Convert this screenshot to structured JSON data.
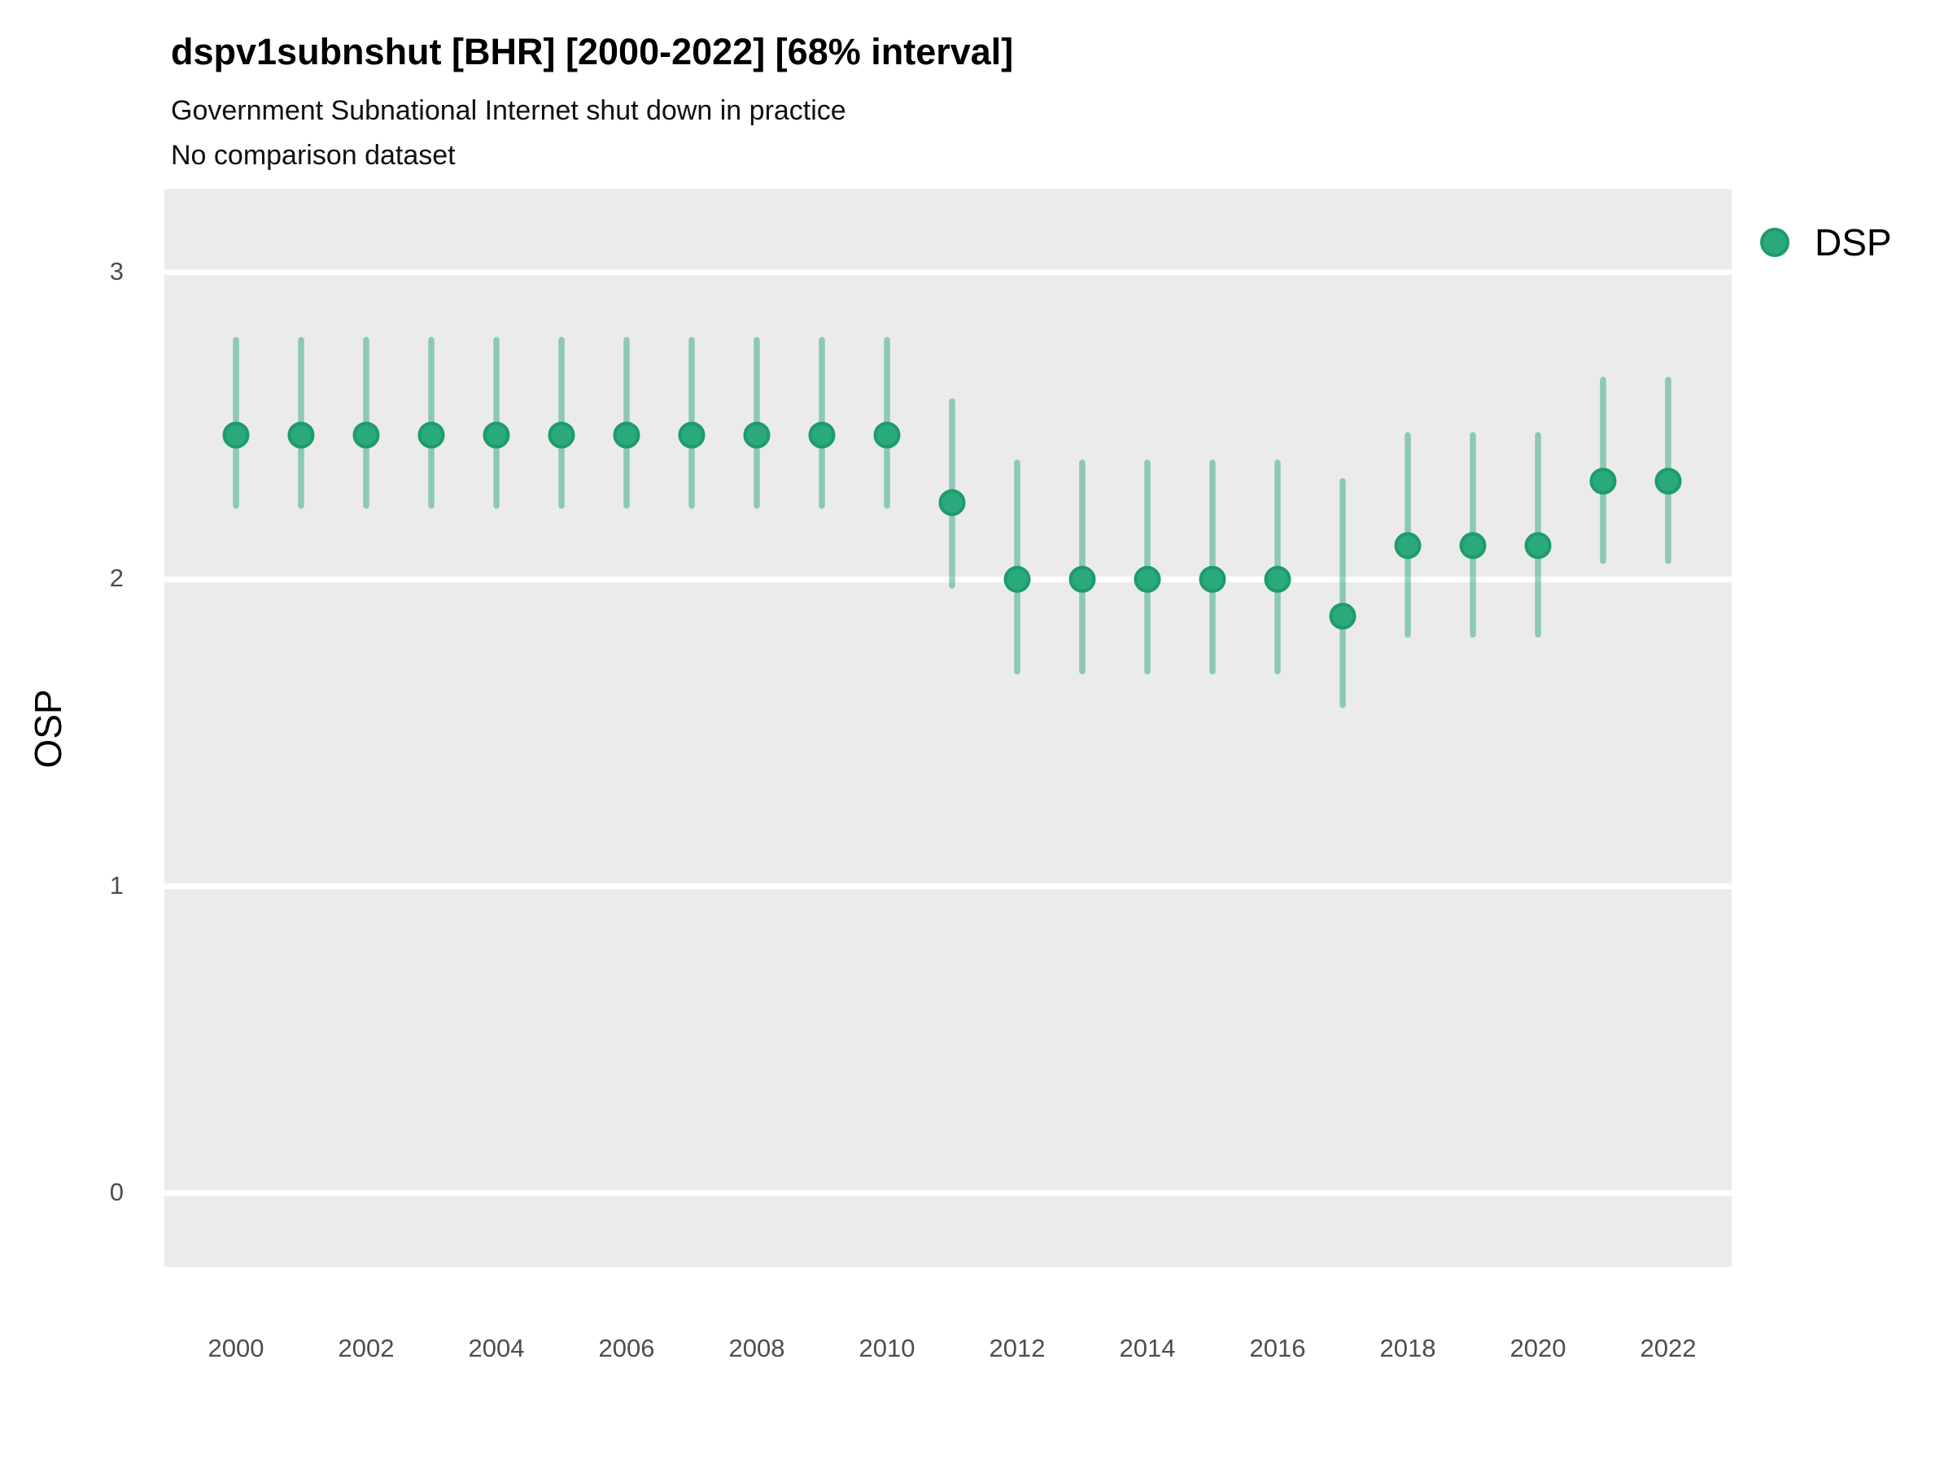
{
  "header": {
    "title": "dspv1subnshut [BHR] [2000-2022] [68% interval]",
    "subtitle": "Government Subnational Internet shut down in practice",
    "note": "No comparison dataset"
  },
  "axes": {
    "y_title": "OSP",
    "y_tick_labels": [
      "3",
      "2",
      "1",
      "0"
    ],
    "y_tick_values": [
      3,
      2,
      1,
      0
    ],
    "x_tick_labels": [
      "2000",
      "2002",
      "2004",
      "2006",
      "2008",
      "2010",
      "2012",
      "2014",
      "2016",
      "2018",
      "2020",
      "2022"
    ],
    "x_tick_values": [
      2000,
      2002,
      2004,
      2006,
      2008,
      2010,
      2012,
      2014,
      2016,
      2018,
      2020,
      2022
    ]
  },
  "legend": {
    "items": [
      {
        "label": "DSP",
        "marker": "circle-icon",
        "color": "#2AA97C",
        "border_color": "#1D9C6A"
      }
    ]
  },
  "colors": {
    "panel_background": "#EBEBEB",
    "gridline": "#FFFFFF",
    "point_fill": "#2AA97C",
    "point_stroke": "#1D9C6A",
    "interval_bar": "rgba(27,158,119,0.45)",
    "tick_text": "#4D4D4D"
  },
  "chart_data": {
    "type": "scatter",
    "subtype": "pointrange",
    "title": "dspv1subnshut [BHR] [2000-2022] [68% interval]",
    "subtitle": "Government Subnational Internet shut down in practice",
    "note": "No comparison dataset",
    "xlabel": "",
    "ylabel": "OSP",
    "interval": "68%",
    "grid": "major-only",
    "legend_position": "right",
    "xlim": [
      1998.9,
      2023.0
    ],
    "ylim": [
      -0.25,
      3.28
    ],
    "series": [
      {
        "name": "DSP",
        "x": [
          2000,
          2001,
          2002,
          2003,
          2004,
          2005,
          2006,
          2007,
          2008,
          2009,
          2010,
          2011,
          2012,
          2013,
          2014,
          2015,
          2016,
          2017,
          2018,
          2019,
          2020,
          2021,
          2022
        ],
        "y": [
          2.47,
          2.47,
          2.47,
          2.47,
          2.47,
          2.47,
          2.47,
          2.47,
          2.47,
          2.47,
          2.47,
          2.25,
          2.0,
          2.0,
          2.0,
          2.0,
          2.0,
          1.88,
          2.11,
          2.11,
          2.11,
          2.32,
          2.32
        ],
        "lo": [
          2.24,
          2.24,
          2.24,
          2.24,
          2.24,
          2.24,
          2.24,
          2.24,
          2.24,
          2.24,
          2.24,
          1.98,
          1.7,
          1.7,
          1.7,
          1.7,
          1.7,
          1.59,
          1.82,
          1.82,
          1.82,
          2.06,
          2.06
        ],
        "hi": [
          2.78,
          2.78,
          2.78,
          2.78,
          2.78,
          2.78,
          2.78,
          2.78,
          2.78,
          2.78,
          2.78,
          2.58,
          2.38,
          2.38,
          2.38,
          2.38,
          2.38,
          2.32,
          2.47,
          2.47,
          2.47,
          2.65,
          2.65
        ]
      }
    ]
  }
}
